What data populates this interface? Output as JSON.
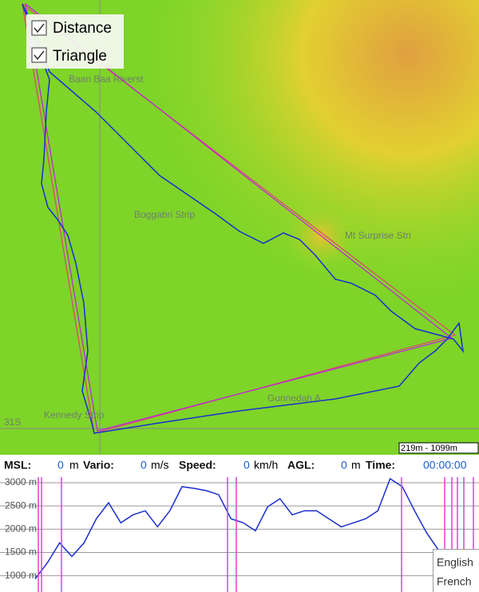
{
  "map": {
    "layers": [
      "Distance",
      "Triangle"
    ],
    "places": [
      "Baan Baa Riverst",
      "Boggabri Strip",
      "Mt Surprise Stri",
      "Gunnedah A",
      "Kennedy Strip"
    ],
    "grid_label": "31S",
    "scale": "219m - 1099m"
  },
  "status": [
    {
      "label": "MSL:",
      "value": 0,
      "unit": "m"
    },
    {
      "label": "Vario:",
      "value": 0,
      "unit": "m/s"
    },
    {
      "label": "Speed:",
      "value": 0,
      "unit": "km/h"
    },
    {
      "label": "AGL:",
      "value": 0,
      "unit": "m"
    },
    {
      "label": "Time:",
      "value": "00:00:00"
    }
  ],
  "profile": {
    "ylim": [
      650,
      3120
    ],
    "yticks": [
      {
        "value": 3000,
        "label": "3000 m"
      },
      {
        "value": 2500,
        "label": "2500 m"
      },
      {
        "value": 2000,
        "label": "2000 m"
      },
      {
        "value": 1500,
        "label": "1500 m"
      },
      {
        "value": 1000,
        "label": "1000 m"
      }
    ],
    "values": [
      931,
      1276,
      1707,
      1414,
      1707,
      2224,
      2569,
      2138,
      2310,
      2397,
      2052,
      2397,
      2914,
      2879,
      2828,
      2741,
      2224,
      2138,
      1966,
      2483,
      2655,
      2310,
      2397,
      2397,
      2224,
      2052,
      2138,
      2224,
      2397,
      3086,
      2914,
      2397,
      1914,
      1535
    ]
  },
  "languages": [
    "English",
    "French"
  ]
}
